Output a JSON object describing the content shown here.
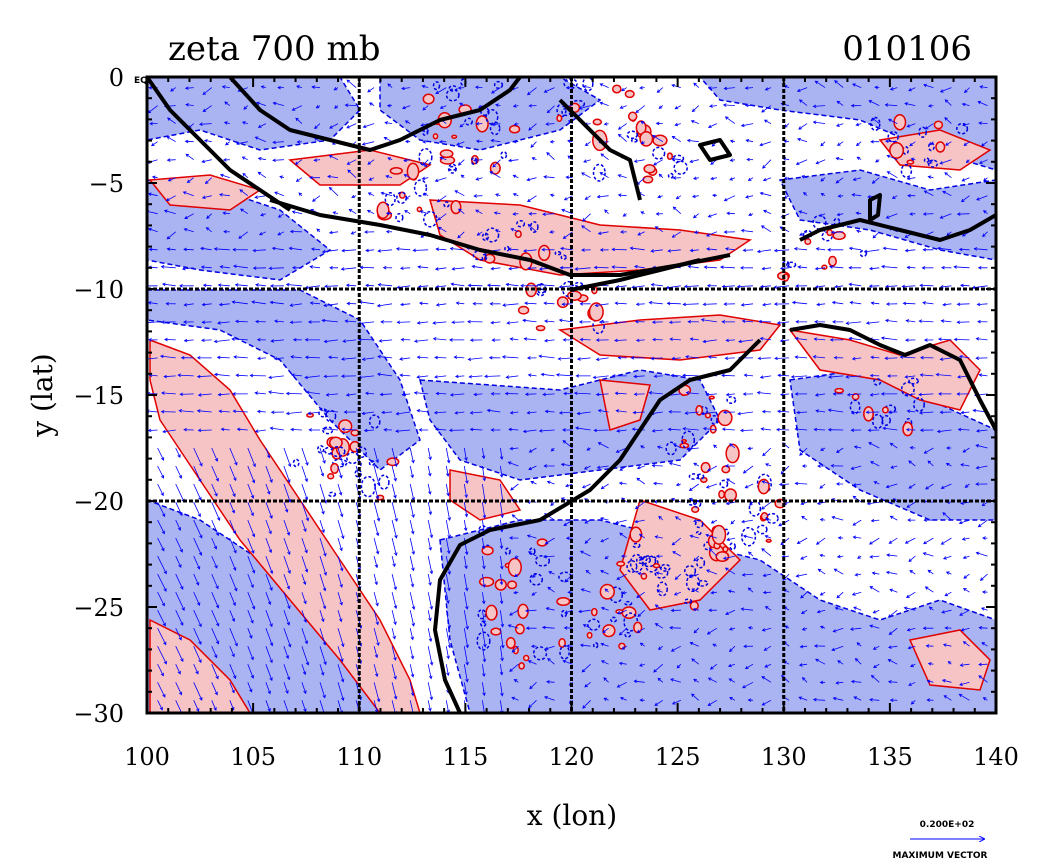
{
  "title": "zeta 700 mb",
  "date_label": "010106",
  "corner_label": "EQ",
  "chart_data": {
    "type": "map",
    "xlabel": "x (lon)",
    "ylabel": "y (lat)",
    "xlim": [
      100,
      140
    ],
    "ylim": [
      -30,
      0
    ],
    "x_ticks": [
      100,
      105,
      110,
      115,
      120,
      125,
      130,
      135,
      140
    ],
    "y_ticks": [
      0,
      -5,
      -10,
      -15,
      -20,
      -25,
      -30
    ],
    "x_tick_labels": [
      "100",
      "105",
      "110",
      "115",
      "120",
      "125",
      "130",
      "135",
      "140"
    ],
    "y_tick_labels": [
      "0",
      "−5",
      "−10",
      "−15",
      "−20",
      "−25",
      "−30"
    ],
    "gridlines_lon": [
      110,
      120,
      130
    ],
    "gridlines_lat": [
      -10,
      -20
    ],
    "fields": {
      "positive_vorticity_color": "#f6c4c4",
      "positive_contour_color": "#e00000",
      "negative_vorticity_color": "#aab4f2",
      "negative_contour_color": "#0000e0",
      "coastline_color": "#000000",
      "vector_color": "#0000ff"
    },
    "reference_vector": {
      "value_label": "0.200E+02",
      "caption": "MAXIMUM VECTOR"
    }
  }
}
